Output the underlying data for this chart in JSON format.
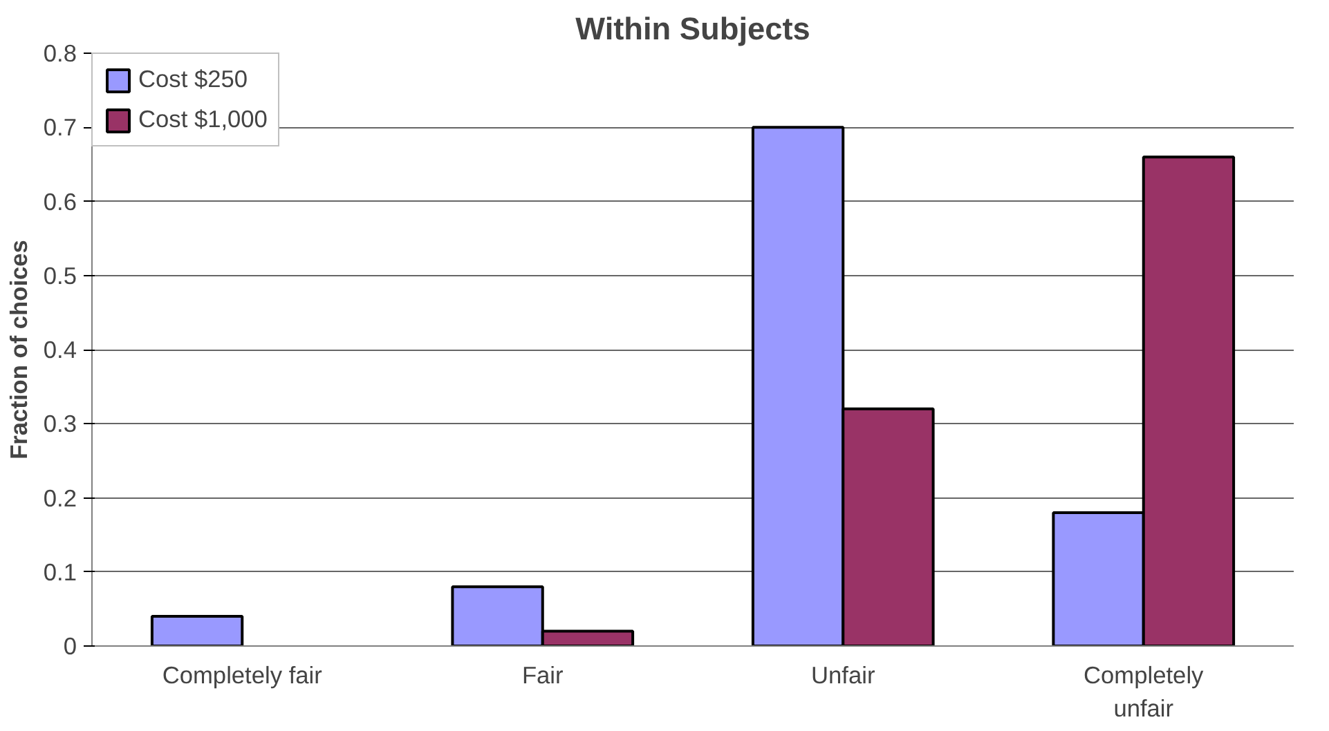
{
  "chart_data": {
    "type": "bar",
    "title": "Within Subjects",
    "ylabel": "Fraction of choices",
    "categories": [
      "Completely fair",
      "Fair",
      "Unfair",
      "Completely unfair"
    ],
    "series": [
      {
        "name": "Cost $250",
        "color": "#9999ff",
        "values": [
          0.04,
          0.08,
          0.7,
          0.18
        ]
      },
      {
        "name": "Cost $1,000",
        "color": "#993366",
        "values": [
          null,
          0.02,
          0.32,
          0.66
        ]
      }
    ],
    "ylim": [
      0,
      0.8
    ],
    "yticks": [
      0,
      0.1,
      0.2,
      0.3,
      0.4,
      0.5,
      0.6,
      0.7,
      0.8
    ],
    "grid": "y",
    "legend": "top left"
  }
}
